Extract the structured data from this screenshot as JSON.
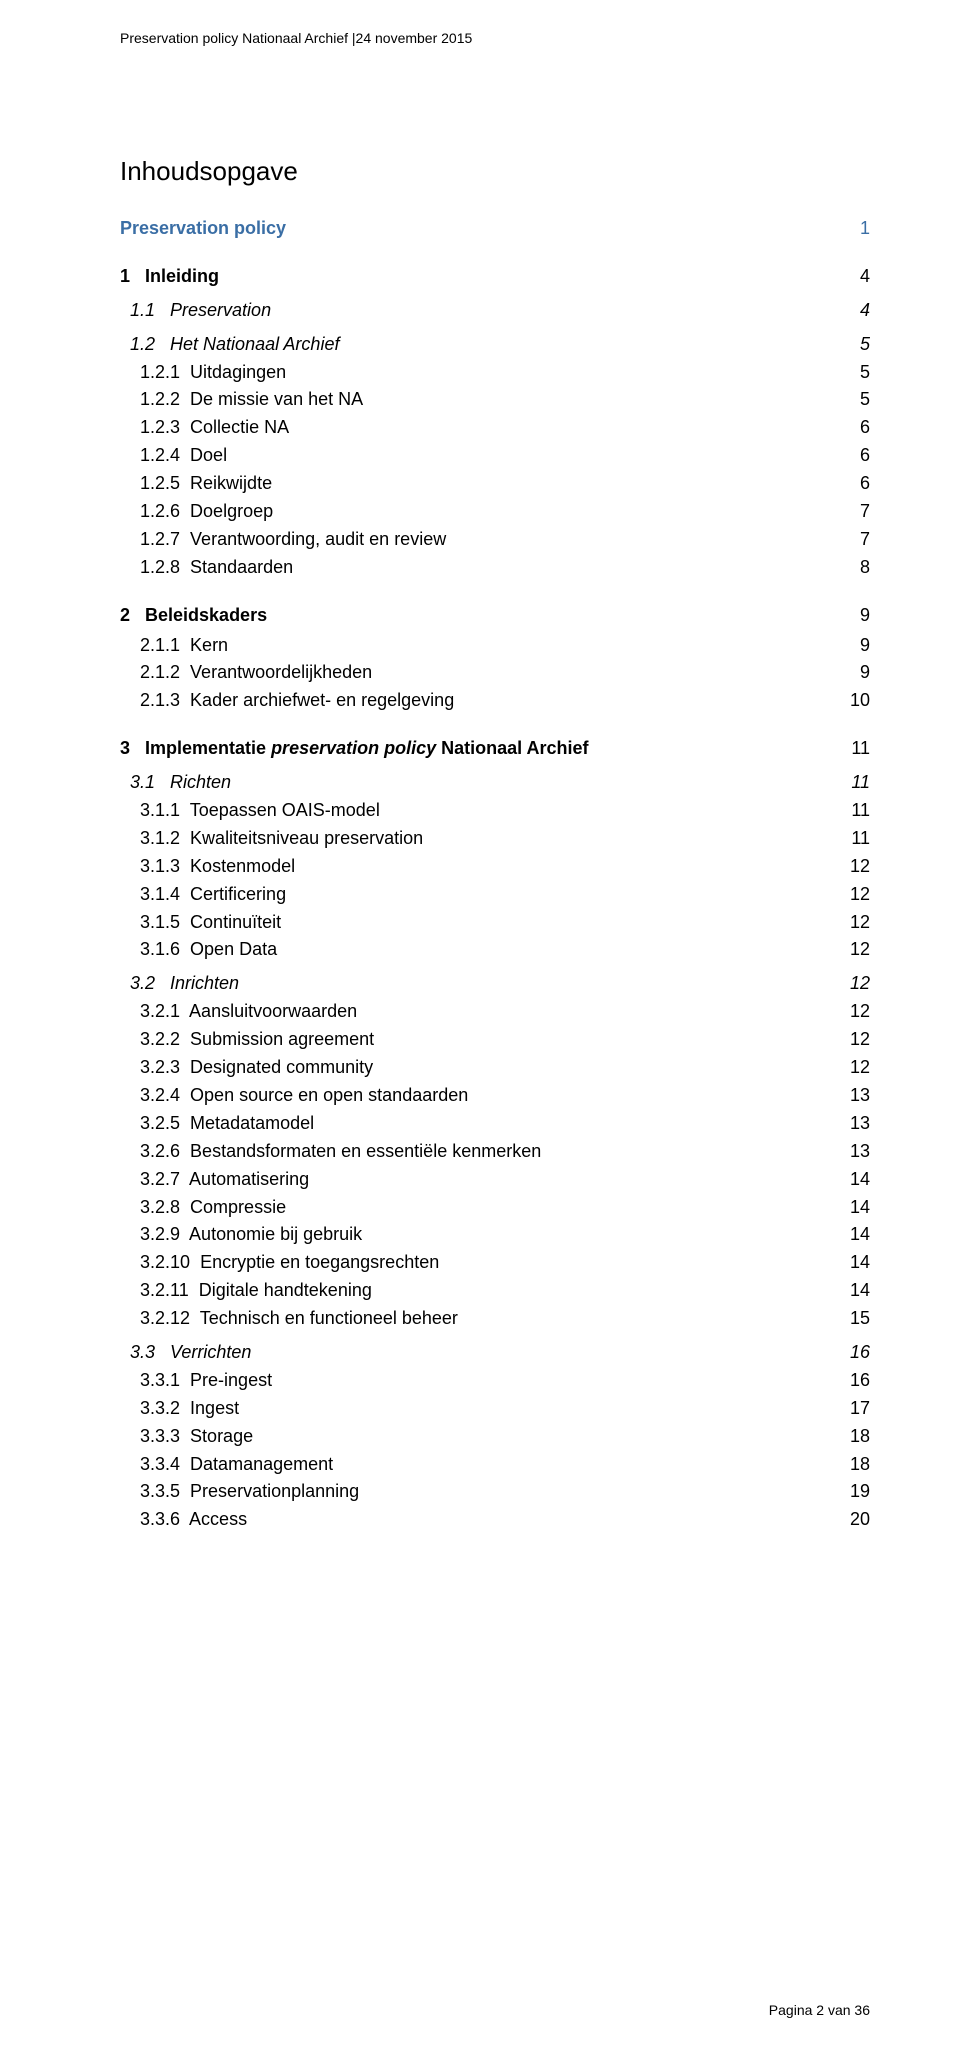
{
  "header_text": "Preservation policy Nationaal Archief |24 november 2015",
  "toc_title": "Inhoudsopgave",
  "footer_text": "Pagina 2 van 36",
  "entries": [
    {
      "level": 0,
      "num": "",
      "text": "Preservation policy",
      "page": "1",
      "bold": true,
      "italic": false,
      "accent": true
    },
    {
      "level": 0,
      "num": "1",
      "text": "Inleiding",
      "page": "4",
      "bold": true,
      "italic": false
    },
    {
      "level": 1,
      "num": "1.1",
      "text": "Preservation",
      "page": "4",
      "italic": true
    },
    {
      "level": 1,
      "num": "1.2",
      "text": "Het Nationaal Archief",
      "page": "5",
      "italic": true
    },
    {
      "level": 2,
      "num": "1.2.1",
      "text": "Uitdagingen",
      "page": "5"
    },
    {
      "level": 2,
      "num": "1.2.2",
      "text": "De missie van het NA",
      "page": "5"
    },
    {
      "level": 2,
      "num": "1.2.3",
      "text": "Collectie NA",
      "page": "6"
    },
    {
      "level": 2,
      "num": "1.2.4",
      "text": "Doel",
      "page": "6"
    },
    {
      "level": 2,
      "num": "1.2.5",
      "text": "Reikwijdte",
      "page": "6"
    },
    {
      "level": 2,
      "num": "1.2.6",
      "text": "Doelgroep",
      "page": "7"
    },
    {
      "level": 2,
      "num": "1.2.7",
      "text": "Verantwoording, audit en review",
      "page": "7"
    },
    {
      "level": 2,
      "num": "1.2.8",
      "text": "Standaarden",
      "page": "8"
    },
    {
      "level": 0,
      "num": "2",
      "text": "Beleidskaders",
      "page": "9",
      "bold": true
    },
    {
      "level": 2,
      "num": "2.1.1",
      "text": "Kern",
      "page": "9"
    },
    {
      "level": 2,
      "num": "2.1.2",
      "text": "Verantwoordelijkheden",
      "page": "9"
    },
    {
      "level": 2,
      "num": "2.1.3",
      "text": "Kader archiefwet- en regelgeving",
      "page": "10"
    },
    {
      "level": 0,
      "num": "3",
      "text": "Implementatie preservation policy Nationaal Archief",
      "page": "11",
      "bold": true,
      "mixed_italic_text": "Implementatie <i>preservation policy</i> Nationaal Archief"
    },
    {
      "level": 1,
      "num": "3.1",
      "text": "Richten",
      "page": "11",
      "italic": true
    },
    {
      "level": 2,
      "num": "3.1.1",
      "text": "Toepassen OAIS-model",
      "page": "11"
    },
    {
      "level": 2,
      "num": "3.1.2",
      "text": "Kwaliteitsniveau preservation",
      "page": "11"
    },
    {
      "level": 2,
      "num": "3.1.3",
      "text": "Kostenmodel",
      "page": "12"
    },
    {
      "level": 2,
      "num": "3.1.4",
      "text": "Certificering",
      "page": "12"
    },
    {
      "level": 2,
      "num": "3.1.5",
      "text": "Continuïteit",
      "page": "12"
    },
    {
      "level": 2,
      "num": "3.1.6",
      "text": "Open Data",
      "page": "12"
    },
    {
      "level": 1,
      "num": "3.2",
      "text": "Inrichten",
      "page": "12",
      "italic": true
    },
    {
      "level": 2,
      "num": "3.2.1",
      "text": "Aansluitvoorwaarden",
      "page": "12"
    },
    {
      "level": 2,
      "num": "3.2.2",
      "text": "Submission agreement",
      "page": "12"
    },
    {
      "level": 2,
      "num": "3.2.3",
      "text": "Designated community",
      "page": "12"
    },
    {
      "level": 2,
      "num": "3.2.4",
      "text": "Open source en open standaarden",
      "page": "13"
    },
    {
      "level": 2,
      "num": "3.2.5",
      "text": "Metadatamodel",
      "page": "13"
    },
    {
      "level": 2,
      "num": "3.2.6",
      "text": "Bestandsformaten en essentiële kenmerken",
      "page": "13"
    },
    {
      "level": 2,
      "num": "3.2.7",
      "text": "Automatisering",
      "page": "14"
    },
    {
      "level": 2,
      "num": "3.2.8",
      "text": "Compressie",
      "page": "14"
    },
    {
      "level": 2,
      "num": "3.2.9",
      "text": "Autonomie bij gebruik",
      "page": "14"
    },
    {
      "level": 2,
      "num": "3.2.10",
      "text": "Encryptie en toegangsrechten",
      "page": "14"
    },
    {
      "level": 2,
      "num": "3.2.11",
      "text": "Digitale handtekening",
      "page": "14"
    },
    {
      "level": 2,
      "num": "3.2.12",
      "text": "Technisch en functioneel beheer",
      "page": "15"
    },
    {
      "level": 1,
      "num": "3.3",
      "text": "Verrichten",
      "page": "16",
      "italic": true
    },
    {
      "level": 2,
      "num": "3.3.1",
      "text": "Pre-ingest",
      "page": "16"
    },
    {
      "level": 2,
      "num": "3.3.2",
      "text": "Ingest",
      "page": "17"
    },
    {
      "level": 2,
      "num": "3.3.3",
      "text": "Storage",
      "page": "18"
    },
    {
      "level": 2,
      "num": "3.3.4",
      "text": "Datamanagement",
      "page": "18"
    },
    {
      "level": 2,
      "num": "3.3.5",
      "text": "Preservationplanning",
      "page": "19"
    },
    {
      "level": 2,
      "num": "3.3.6",
      "text": "Access",
      "page": "20"
    }
  ],
  "indent": {
    "level0_num_pad": 0,
    "level0_gap": "   ",
    "level1_lead": "  ",
    "level1_gap": "   ",
    "level2_lead": "    ",
    "level2_gap": "  "
  }
}
